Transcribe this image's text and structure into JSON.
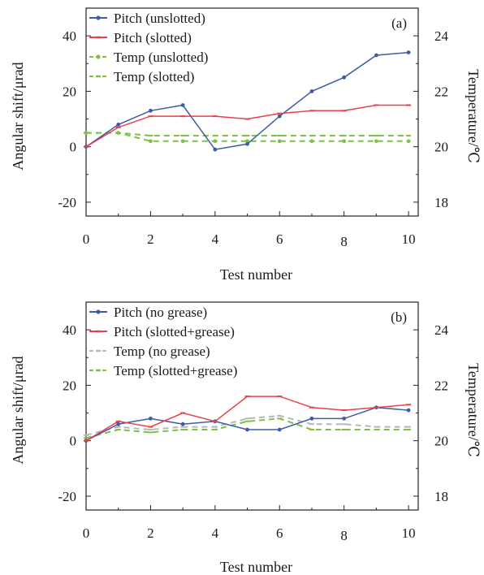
{
  "chart_data": [
    {
      "type": "line",
      "panel_label": "(a)",
      "xlabel": "Test number",
      "ylabel": "Angular shift/μrad",
      "y2label": "Temperature/℃",
      "xlim": [
        0,
        10.3
      ],
      "ylim": [
        -25,
        50
      ],
      "y2lim": [
        17.5,
        25
      ],
      "x_ticks": [
        0,
        2,
        4,
        6,
        8,
        10
      ],
      "y_ticks": [
        -20,
        0,
        20,
        40
      ],
      "y2_ticks": [
        18,
        20,
        22,
        24
      ],
      "legend_position": "top-left",
      "x": [
        0,
        1,
        2,
        3,
        4,
        5,
        6,
        7,
        8,
        9,
        10
      ],
      "series": [
        {
          "name": "Pitch (unslotted)",
          "axis": "left",
          "color": "#3a5da8",
          "style": "solid",
          "marker": "dot",
          "values": [
            0,
            8,
            13,
            15,
            -1,
            1,
            11,
            20,
            25,
            33,
            34
          ]
        },
        {
          "name": "Pitch (slotted)",
          "axis": "left",
          "color": "#e8404a",
          "style": "solid",
          "marker": "dash",
          "values": [
            0,
            7,
            11,
            11,
            11,
            10,
            12,
            13,
            13,
            15,
            15
          ]
        },
        {
          "name": "Temp (unslotted)",
          "axis": "right",
          "color": "#7fc04a",
          "style": "dashed",
          "marker": "dot",
          "values": [
            20.5,
            20.5,
            20.2,
            20.2,
            20.2,
            20.2,
            20.2,
            20.2,
            20.2,
            20.2,
            20.2
          ]
        },
        {
          "name": "Temp (slotted)",
          "axis": "right",
          "color": "#7fc04a",
          "style": "dashed",
          "marker": "dash",
          "values": [
            20.5,
            20.5,
            20.4,
            20.4,
            20.4,
            20.4,
            20.4,
            20.4,
            20.4,
            20.4,
            20.4
          ]
        }
      ]
    },
    {
      "type": "line",
      "panel_label": "(b)",
      "xlabel": "Test number",
      "ylabel": "Angular shift/μrad",
      "y2label": "Temperature/℃",
      "xlim": [
        0,
        10.3
      ],
      "ylim": [
        -25,
        50
      ],
      "y2lim": [
        17.5,
        25
      ],
      "x_ticks": [
        0,
        2,
        4,
        6,
        8,
        10
      ],
      "y_ticks": [
        -20,
        0,
        20,
        40
      ],
      "y2_ticks": [
        18,
        20,
        22,
        24
      ],
      "legend_position": "top-left",
      "x": [
        0,
        1,
        2,
        3,
        4,
        5,
        6,
        7,
        8,
        9,
        10
      ],
      "series": [
        {
          "name": "Pitch (no grease)",
          "axis": "left",
          "color": "#3a5da8",
          "style": "solid",
          "marker": "dot",
          "values": [
            0,
            6,
            8,
            6,
            7,
            4,
            4,
            8,
            8,
            12,
            11
          ]
        },
        {
          "name": "Pitch (slotted+grease)",
          "axis": "left",
          "color": "#e8404a",
          "style": "solid",
          "marker": "dash",
          "values": [
            0,
            7,
            5,
            10,
            7,
            16,
            16,
            12,
            11,
            12,
            13
          ]
        },
        {
          "name": "Temp (no grease)",
          "axis": "right",
          "color": "#b8b8b8",
          "style": "dashed",
          "marker": "dash",
          "values": [
            20.2,
            20.5,
            20.4,
            20.5,
            20.5,
            20.8,
            20.9,
            20.6,
            20.6,
            20.5,
            20.5
          ]
        },
        {
          "name": "Temp (slotted+grease)",
          "axis": "right",
          "color": "#7fc04a",
          "style": "dashed",
          "marker": "dash",
          "values": [
            20.1,
            20.4,
            20.3,
            20.4,
            20.4,
            20.7,
            20.8,
            20.4,
            20.4,
            20.4,
            20.4
          ]
        }
      ]
    }
  ]
}
